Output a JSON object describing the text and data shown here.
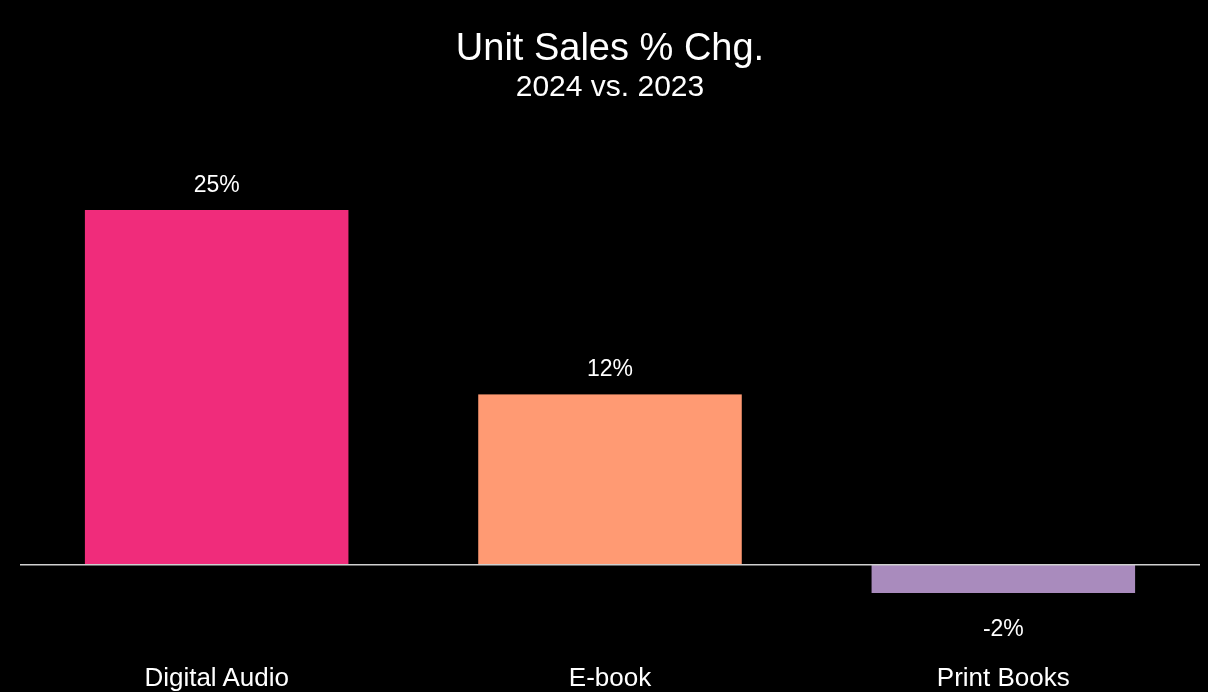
{
  "chart_data": {
    "type": "bar",
    "title": "Unit Sales % Chg.",
    "subtitle": "2024 vs. 2023",
    "categories": [
      "Digital Audio",
      "E-book",
      "Print Books"
    ],
    "values": [
      25,
      12,
      -2
    ],
    "value_labels": [
      "25%",
      "12%",
      "-2%"
    ],
    "colors": [
      "#f02c7b",
      "#ff9a73",
      "#a98bbd"
    ]
  }
}
